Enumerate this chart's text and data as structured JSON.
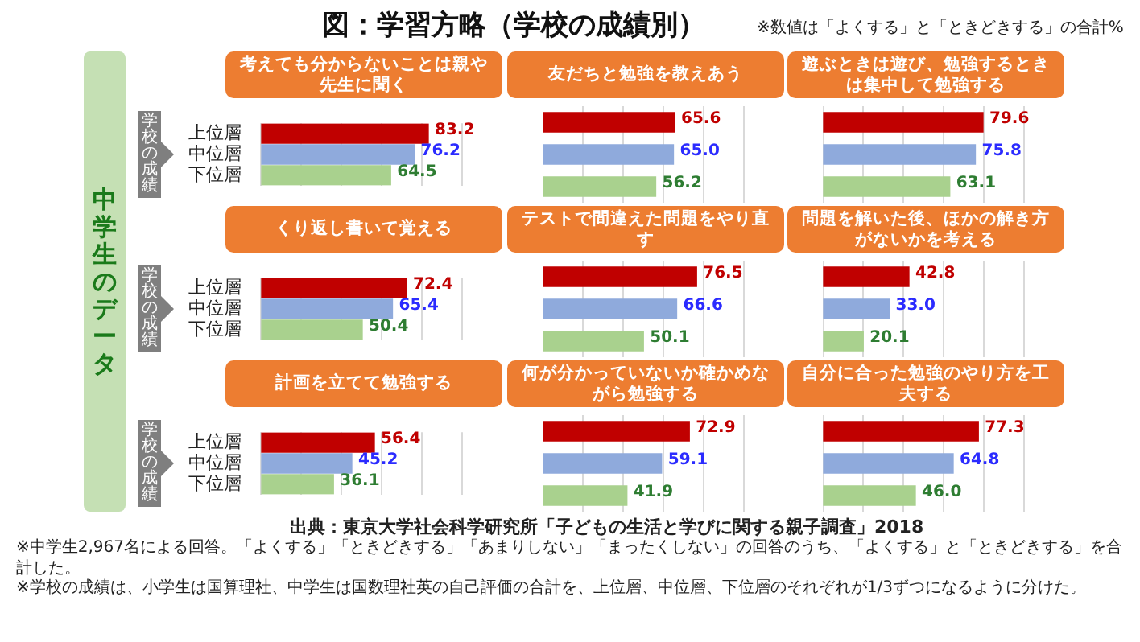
{
  "chart_data": [
    {
      "type": "other",
      "title": "図：学習方略（学校の成績別）",
      "subtitle": "※数値は「よくする」と「ときどきする」の合計%",
      "annotations": [
        "中学生のデータ",
        "出典：東京大学社会科学研究所「子どもの生活と学びに関する親子調査」2018",
        "※中学生2,967名による回答。「よくする」「ときどきする」「あまりしない」「まったくしない」の回答のうち、「よくする」と「ときどきする」を合計した。",
        "※学校の成績は、小学生は国算理社、中学生は国数理社英の自己評価の合計を、上位層、中位層、下位層のそれぞれが1/3ずつになるように分けた。"
      ]
    },
    {
      "type": "bar",
      "orientation": "horizontal",
      "title": "考えても分からないことは親や先生に聞く",
      "ylabel": "学校の成績",
      "categories": [
        "上位層",
        "中位層",
        "下位層"
      ],
      "values": [
        83.2,
        76.2,
        64.5
      ],
      "value_labels": [
        "83.2",
        "76.2",
        "64.5"
      ],
      "colors": [
        "#c00000",
        "#8faadc",
        "#a9d18e"
      ],
      "xlim": [
        0,
        100
      ],
      "xticks": [
        {
          "value": 0,
          "label": null
        },
        {
          "value": 20,
          "label": null
        },
        {
          "value": 40,
          "label": null
        },
        {
          "value": 60,
          "label": null
        },
        {
          "value": 80,
          "label": null
        },
        {
          "value": 100,
          "label": null
        }
      ],
      "grid": "x",
      "tick_labels": "y"
    },
    {
      "type": "bar",
      "orientation": "horizontal",
      "title": "友だちと勉強を教えあう",
      "categories": [
        null,
        null,
        null
      ],
      "values": [
        65.6,
        65.0,
        56.2
      ],
      "value_labels": [
        "65.6",
        "65.0",
        "56.2"
      ],
      "colors": [
        "#c00000",
        "#8faadc",
        "#a9d18e"
      ],
      "xlim": [
        0,
        100
      ],
      "xticks": [
        {
          "value": 0,
          "label": null
        },
        {
          "value": 20,
          "label": null
        },
        {
          "value": 40,
          "label": null
        },
        {
          "value": 60,
          "label": null
        },
        {
          "value": 80,
          "label": null
        },
        {
          "value": 100,
          "label": null
        }
      ],
      "grid": "x",
      "tick_labels": false
    },
    {
      "type": "bar",
      "orientation": "horizontal",
      "title": "遊ぶときは遊び、勉強するときは集中して勉強する",
      "categories": [
        null,
        null,
        null
      ],
      "values": [
        79.6,
        75.8,
        63.1
      ],
      "value_labels": [
        "79.6",
        "75.8",
        "63.1"
      ],
      "colors": [
        "#c00000",
        "#8faadc",
        "#a9d18e"
      ],
      "xlim": [
        0,
        100
      ],
      "xticks": [
        {
          "value": 0,
          "label": null
        },
        {
          "value": 20,
          "label": null
        },
        {
          "value": 40,
          "label": null
        },
        {
          "value": 60,
          "label": null
        },
        {
          "value": 80,
          "label": null
        },
        {
          "value": 100,
          "label": null
        }
      ],
      "grid": "x",
      "tick_labels": false
    },
    {
      "type": "bar",
      "orientation": "horizontal",
      "title": "くり返し書いて覚える",
      "ylabel": "学校の成績",
      "categories": [
        "上位層",
        "中位層",
        "下位層"
      ],
      "values": [
        72.4,
        65.4,
        50.4
      ],
      "value_labels": [
        "72.4",
        "65.4",
        "50.4"
      ],
      "colors": [
        "#c00000",
        "#8faadc",
        "#a9d18e"
      ],
      "xlim": [
        0,
        100
      ],
      "xticks": [
        {
          "value": 0,
          "label": null
        },
        {
          "value": 20,
          "label": null
        },
        {
          "value": 40,
          "label": null
        },
        {
          "value": 60,
          "label": null
        },
        {
          "value": 80,
          "label": null
        },
        {
          "value": 100,
          "label": null
        }
      ],
      "grid": "x",
      "tick_labels": "y"
    },
    {
      "type": "bar",
      "orientation": "horizontal",
      "title": "テストで間違えた問題をやり直す",
      "categories": [
        null,
        null,
        null
      ],
      "values": [
        76.5,
        66.6,
        50.1
      ],
      "value_labels": [
        "76.5",
        "66.6",
        "50.1"
      ],
      "colors": [
        "#c00000",
        "#8faadc",
        "#a9d18e"
      ],
      "xlim": [
        0,
        100
      ],
      "xticks": [
        {
          "value": 0,
          "label": null
        },
        {
          "value": 20,
          "label": null
        },
        {
          "value": 40,
          "label": null
        },
        {
          "value": 60,
          "label": null
        },
        {
          "value": 80,
          "label": null
        },
        {
          "value": 100,
          "label": null
        }
      ],
      "grid": "x",
      "tick_labels": false
    },
    {
      "type": "bar",
      "orientation": "horizontal",
      "title": "問題を解いた後、ほかの解き方がないかを考える",
      "categories": [
        null,
        null,
        null
      ],
      "values": [
        42.8,
        33.0,
        20.1
      ],
      "value_labels": [
        "42.8",
        "33.0",
        "20.1"
      ],
      "colors": [
        "#c00000",
        "#8faadc",
        "#a9d18e"
      ],
      "xlim": [
        0,
        100
      ],
      "xticks": [
        {
          "value": 0,
          "label": null
        },
        {
          "value": 20,
          "label": null
        },
        {
          "value": 40,
          "label": null
        },
        {
          "value": 60,
          "label": null
        },
        {
          "value": 80,
          "label": null
        },
        {
          "value": 100,
          "label": null
        }
      ],
      "grid": "x",
      "tick_labels": false
    },
    {
      "type": "bar",
      "orientation": "horizontal",
      "title": "計画を立てて勉強する",
      "ylabel": "学校の成績",
      "categories": [
        "上位層",
        "中位層",
        "下位層"
      ],
      "values": [
        56.4,
        45.2,
        36.1
      ],
      "value_labels": [
        "56.4",
        "45.2",
        "36.1"
      ],
      "colors": [
        "#c00000",
        "#8faadc",
        "#a9d18e"
      ],
      "xlim": [
        0,
        100
      ],
      "xticks": [
        {
          "value": 0,
          "label": null
        },
        {
          "value": 20,
          "label": null
        },
        {
          "value": 40,
          "label": null
        },
        {
          "value": 60,
          "label": null
        },
        {
          "value": 80,
          "label": null
        },
        {
          "value": 100,
          "label": null
        }
      ],
      "grid": "x",
      "tick_labels": "y"
    },
    {
      "type": "bar",
      "orientation": "horizontal",
      "title": "何が分かっていないか確かめながら勉強する",
      "categories": [
        null,
        null,
        null
      ],
      "values": [
        72.9,
        59.1,
        41.9
      ],
      "value_labels": [
        "72.9",
        "59.1",
        "41.9"
      ],
      "colors": [
        "#c00000",
        "#8faadc",
        "#a9d18e"
      ],
      "xlim": [
        0,
        100
      ],
      "xticks": [
        {
          "value": 0,
          "label": null
        },
        {
          "value": 20,
          "label": null
        },
        {
          "value": 40,
          "label": null
        },
        {
          "value": 60,
          "label": null
        },
        {
          "value": 80,
          "label": null
        },
        {
          "value": 100,
          "label": null
        }
      ],
      "grid": "x",
      "tick_labels": false
    },
    {
      "type": "bar",
      "orientation": "horizontal",
      "title": "自分に合った勉強のやり方を工夫する",
      "categories": [
        null,
        null,
        null
      ],
      "values": [
        77.3,
        64.8,
        46.0
      ],
      "value_labels": [
        "77.3",
        "64.8",
        "46.0"
      ],
      "colors": [
        "#c00000",
        "#8faadc",
        "#a9d18e"
      ],
      "xlim": [
        0,
        100
      ],
      "xticks": [
        {
          "value": 0,
          "label": null
        },
        {
          "value": 20,
          "label": null
        },
        {
          "value": 40,
          "label": null
        },
        {
          "value": 60,
          "label": null
        },
        {
          "value": 80,
          "label": null
        },
        {
          "value": 100,
          "label": null
        }
      ],
      "grid": "x",
      "tick_labels": false
    }
  ]
}
